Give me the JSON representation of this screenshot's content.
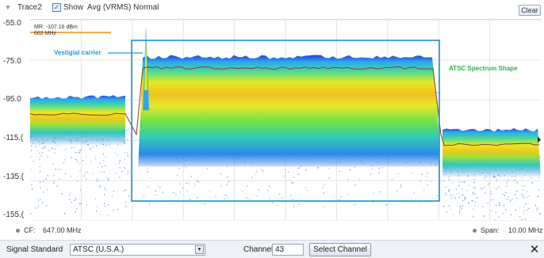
{
  "trace_header": {
    "trace_name": "Trace2",
    "show_label": "Show",
    "show_checked": true,
    "mode": "Avg (VRMS) Normal",
    "clear_label": "Clear",
    "chevron_icon": "chevron-down-icon"
  },
  "marker": {
    "readout_line1": "MR: -107.16 dBm",
    "readout_line2": "662 MHz",
    "color": "#f08a1c"
  },
  "y_axis": {
    "labels": [
      "-55.0",
      "-75.0",
      "-95.0",
      "-115.(",
      "-135.(",
      "-155.("
    ]
  },
  "annotations": {
    "vestigial": "Vestigial carrier",
    "atsc_shape": "ATSC Spectrum Shape",
    "box_color": "#1e8fd4",
    "vestigial_color": "#1e9ad6",
    "atsc_color": "#2fb24a"
  },
  "frequency": {
    "cf_label": "CF:",
    "cf_value": "647.00 MHz",
    "span_label": "Span:",
    "span_value": "10.00 MHz"
  },
  "controls": {
    "signal_standard_label": "Signal Standard",
    "signal_standard_value": "ATSC (U.S.A.)",
    "channel_label": "Channel",
    "channel_value": "43",
    "select_channel_label": "Select Channel",
    "close_icon": "close-icon"
  },
  "chart_data": {
    "type": "heatmap",
    "title": "",
    "xlabel": "",
    "ylabel": "",
    "ylim": [
      -155,
      -55
    ],
    "y_ticks": [
      -55,
      -75,
      -95,
      -115,
      -135,
      -155
    ],
    "x_center_mhz": 647,
    "x_span_mhz": 10,
    "grid": true,
    "colormap": [
      "#1a4fd6",
      "#2aa8f0",
      "#3dd6a0",
      "#7ee03a",
      "#e8e81a",
      "#f0a020"
    ],
    "series": [
      {
        "name": "Avg (VRMS) Normal",
        "color": "#8a3a2a",
        "approx_levels_dbm": [
          {
            "region": "left adjacent",
            "level": -102
          },
          {
            "region": "ATSC channel",
            "level": -79
          },
          {
            "region": "right adjacent",
            "level": -117
          }
        ]
      }
    ]
  }
}
